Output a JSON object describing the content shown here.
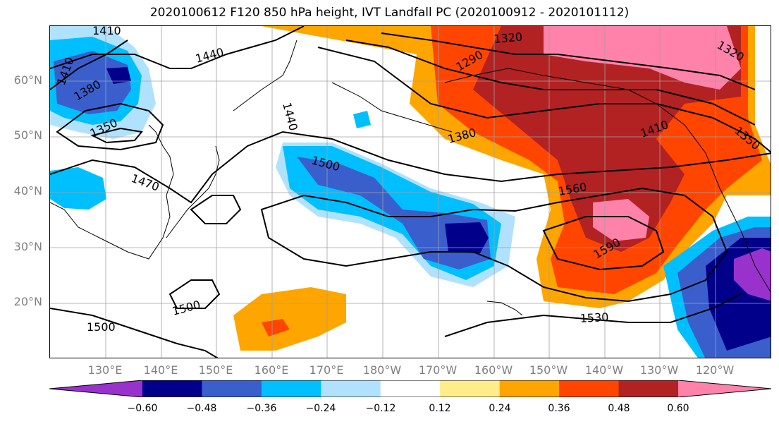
{
  "title": "2020100612 F120 850 hPa height, IVT Landfall PC (2020100912 - 2020101112)",
  "lat_labels": [
    "60°N",
    "50°N",
    "40°N",
    "30°N",
    "20°N"
  ],
  "lon_labels": [
    "130°E",
    "140°E",
    "150°E",
    "160°E",
    "170°E",
    "180°W",
    "170°W",
    "160°W",
    "150°W",
    "140°W",
    "130°W",
    "120°W"
  ],
  "contour_labels": [
    "1410",
    "1410",
    "1440",
    "1380",
    "1350",
    "1470",
    "1440",
    "1320",
    "1290",
    "1380",
    "1410",
    "1350",
    "1320",
    "1500",
    "1560",
    "1590",
    "1500",
    "1500",
    "1530"
  ],
  "colorbar": {
    "tick_labels": [
      "−0.60",
      "−0.48",
      "−0.36",
      "−0.24",
      "−0.12",
      "0.12",
      "0.24",
      "0.36",
      "0.48",
      "0.60"
    ],
    "colors": [
      "#9932cc",
      "#00008b",
      "#3a5fcd",
      "#00bfff",
      "#b0e2ff",
      "#ffffff",
      "#ffec8b",
      "#ffa500",
      "#ff4500",
      "#b22222",
      "#ff82ab"
    ]
  },
  "colors": {
    "contour": "#000000",
    "grid": "#a0a0a0",
    "axis_text": "#808080"
  }
}
